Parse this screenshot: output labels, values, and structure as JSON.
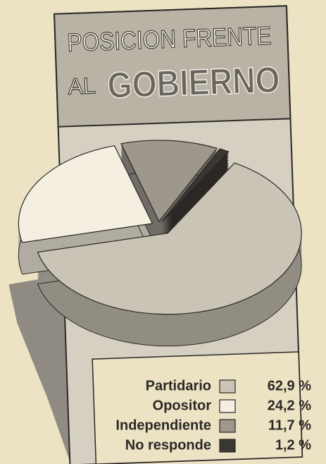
{
  "chart_data": {
    "type": "pie",
    "title": [
      "POSICION FRENTE",
      "AL",
      "GOBIERNO"
    ],
    "categories": [
      "Partidario",
      "Opositor",
      "Independiente",
      "No responde"
    ],
    "values": [
      62.9,
      24.2,
      11.7,
      1.2
    ],
    "value_labels": [
      "62,9 %",
      "24,2 %",
      "11,7 %",
      "1,2 %"
    ],
    "colors": [
      "#c9c4b6",
      "#f4efe0",
      "#9d978c",
      "#3a3632"
    ]
  }
}
